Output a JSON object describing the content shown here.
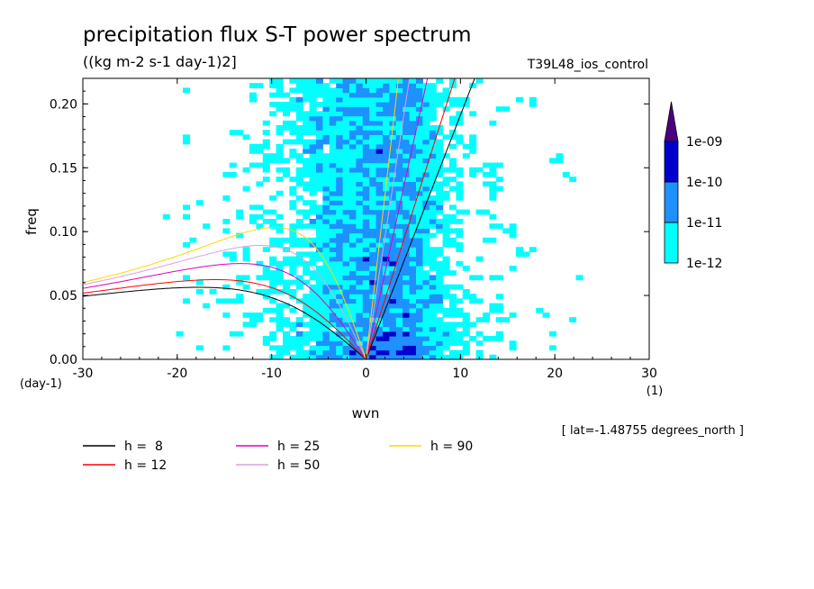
{
  "chart_data": {
    "type": "heatmap",
    "title": "precipitation flux S-T power spectrum",
    "units_label": "((kg m-2 s-1 day-1)2]",
    "experiment": "T39L48_ios_control",
    "xlabel": "wvn",
    "ylabel": "freq",
    "x_unit": "(1)",
    "y_unit": "(day-1)",
    "xlim": [
      -30,
      30
    ],
    "ylim": [
      0,
      0.22
    ],
    "x_ticks": [
      "-30",
      "-20",
      "-10",
      "0",
      "10",
      "20",
      "30"
    ],
    "y_ticks": [
      "0.00",
      "0.05",
      "0.10",
      "0.15",
      "0.20"
    ],
    "x_tick_values": [
      -30,
      -20,
      -10,
      0,
      10,
      20,
      30
    ],
    "y_tick_values": [
      0,
      0.05,
      0.1,
      0.15,
      0.2
    ],
    "annotation": "[ lat=-1.48755 degrees_north ]",
    "colorbar": {
      "levels": [
        "1e-12",
        "1e-11",
        "1e-10",
        "1e-09"
      ],
      "colors": [
        "#00ffff",
        "#1e90ff",
        "#0000cd",
        "#4b0082"
      ],
      "extend": "max"
    },
    "dispersion_curves": [
      {
        "label": "h =  8",
        "h": 8,
        "color": "#000000"
      },
      {
        "label": "h = 12",
        "h": 12,
        "color": "#ff0000"
      },
      {
        "label": "h = 25",
        "h": 25,
        "color": "#e000c0"
      },
      {
        "label": "h = 50",
        "h": 50,
        "color": "#dda0dd"
      },
      {
        "label": "h = 90",
        "h": 90,
        "color": "#ffd700"
      }
    ]
  }
}
